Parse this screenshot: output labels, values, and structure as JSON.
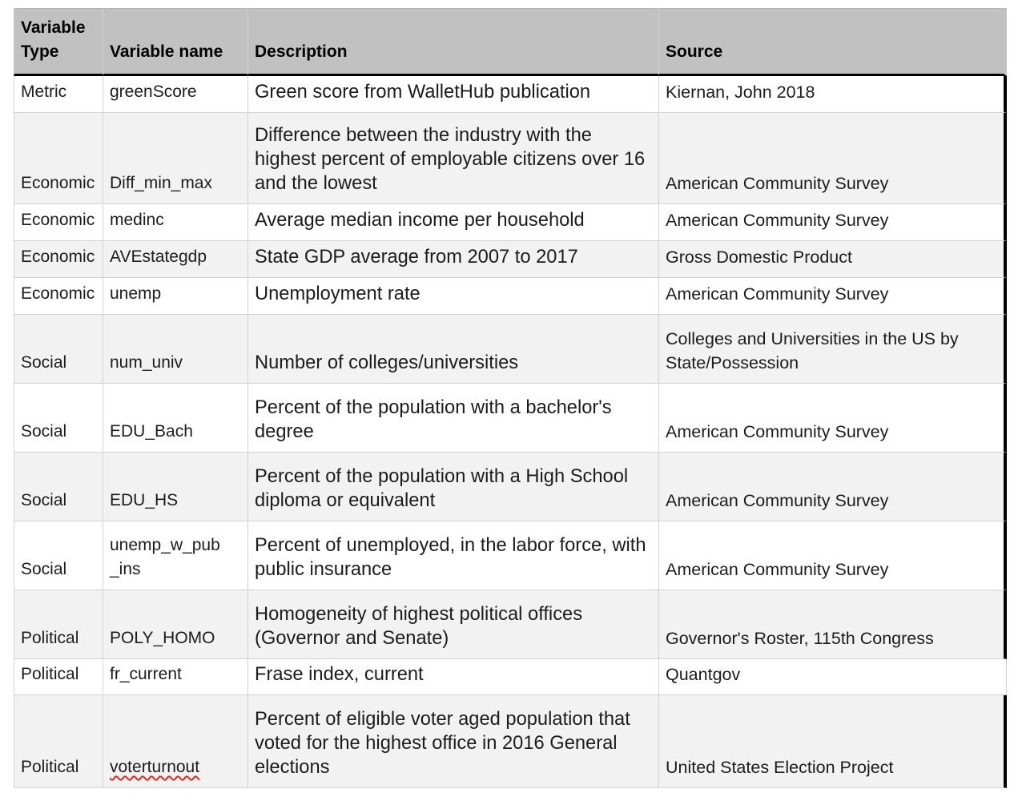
{
  "table": {
    "columns": [
      "Variable Type",
      "Variable name",
      "Description",
      "Source"
    ],
    "rows": [
      {
        "type": "Metric",
        "name": "greenScore",
        "description": "Green score from WalletHub publication",
        "source": "Kiernan, John 2018",
        "misspelled": false
      },
      {
        "type": "Economic",
        "name": "Diff_min_max",
        "description": "Difference between the industry with the highest percent of employable citizens over 16 and the lowest",
        "source": "American Community Survey",
        "misspelled": false
      },
      {
        "type": "Economic",
        "name": "medinc",
        "description": "Average median income per household",
        "source": "American Community Survey",
        "misspelled": false
      },
      {
        "type": "Economic",
        "name": "AVEstategdp",
        "description": "State GDP average from 2007 to 2017",
        "source": "Gross Domestic Product",
        "misspelled": false
      },
      {
        "type": "Economic",
        "name": "unemp",
        "description": "Unemployment rate",
        "source": "American Community Survey",
        "misspelled": false
      },
      {
        "type": "Social",
        "name": "num_univ",
        "description": "Number of colleges/universities",
        "source": "Colleges and Universities in the US by State/Possession",
        "misspelled": false
      },
      {
        "type": "Social",
        "name": "EDU_Bach",
        "description": "Percent of the population with a bachelor's degree",
        "source": "American Community Survey",
        "misspelled": false
      },
      {
        "type": "Social",
        "name": "EDU_HS",
        "description": "Percent of the population with a High School diploma or equivalent",
        "source": "American Community Survey",
        "misspelled": false
      },
      {
        "type": "Social",
        "name": "unemp_w_pub_ins",
        "description": "Percent of unemployed, in the labor force, with public insurance",
        "source": "American Community Survey",
        "misspelled": false
      },
      {
        "type": "Political",
        "name": "POLY_HOMO",
        "description": "Homogeneity of highest political offices (Governor and Senate)",
        "source": "Governor's Roster, 115th Congress",
        "misspelled": false
      },
      {
        "type": "Political",
        "name": "fr_current",
        "description": "Frase index, current",
        "source": "Quantgov",
        "misspelled": false
      },
      {
        "type": "Political",
        "name": "voterturnout",
        "description": "Percent of eligible voter aged population that voted for the highest office in 2016 General elections",
        "source": "United States Election Project",
        "misspelled": true
      }
    ]
  },
  "colors": {
    "header_bg": "#c1c1c1",
    "shaded_row_bg": "#f2f2f2",
    "grid_line": "#d2d2d2",
    "header_rule": "#000000",
    "heavy_border": "#000000",
    "text_color": "#1c1c1c",
    "spell_color": "#e02820"
  }
}
